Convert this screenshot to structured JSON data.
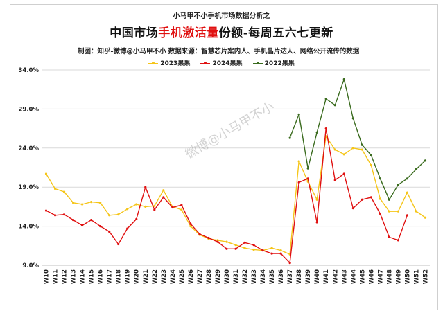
{
  "header": {
    "top_title": "小马甲不小手机市场数据分析之",
    "main_title_prefix": "中国市场",
    "main_title_highlight": "手机激活量",
    "main_title_suffix": "份额-每周五六七更新",
    "subtitle": "制图：知乎-微博@小马甲不小    数据来源：智慧芯片案内人、手机晶片达人、网络公开流传的数据"
  },
  "watermark": "微博@小马甲不小",
  "colors": {
    "y2023": "#f5c518",
    "y2024": "#e01010",
    "y2022": "#3a6b1e"
  },
  "chart_data": {
    "type": "line",
    "title": "",
    "xlabel": "",
    "ylabel": "",
    "ylim": [
      9.0,
      34.0
    ],
    "yticks": [
      "9.0%",
      "14.0%",
      "19.0%",
      "24.0%",
      "29.0%",
      "34.0%"
    ],
    "ytick_values": [
      9,
      14,
      19,
      24,
      29,
      34
    ],
    "grid": "horizontal",
    "legend_position": "top",
    "categories": [
      "W10",
      "W11",
      "W12",
      "W13",
      "W14",
      "W15",
      "W16",
      "W17",
      "W18",
      "W19",
      "W20",
      "W21",
      "W22",
      "W23",
      "W24",
      "W25",
      "W26",
      "W27",
      "W28",
      "W29",
      "W30",
      "W31",
      "W32",
      "W33",
      "W34",
      "W35",
      "W36",
      "W37",
      "W38",
      "W39",
      "W40",
      "W41",
      "W42",
      "W43",
      "W44",
      "W45",
      "W46",
      "W47",
      "W48",
      "W49",
      "W50",
      "W51",
      "W52"
    ],
    "series": [
      {
        "name": "2023果果",
        "color": "#f5c518",
        "values": [
          20.7,
          18.8,
          18.4,
          17.0,
          16.8,
          17.1,
          17.0,
          15.4,
          15.5,
          16.2,
          16.8,
          16.5,
          16.6,
          18.6,
          16.5,
          16.1,
          14.0,
          12.9,
          12.4,
          12.2,
          12.0,
          11.6,
          11.2,
          11.0,
          10.9,
          11.2,
          10.9,
          10.4,
          22.3,
          19.7,
          17.4,
          25.5,
          23.8,
          23.2,
          24.0,
          23.8,
          21.8,
          17.5,
          15.9,
          15.9,
          18.3,
          15.9,
          15.1
        ]
      },
      {
        "name": "2024果果",
        "color": "#e01010",
        "values": [
          16.0,
          15.4,
          15.5,
          14.8,
          14.1,
          14.8,
          14.0,
          13.3,
          11.7,
          13.7,
          14.9,
          19.0,
          16.1,
          17.7,
          16.4,
          16.7,
          14.3,
          13.0,
          12.5,
          12.0,
          11.1,
          11.1,
          11.9,
          11.6,
          10.9,
          10.5,
          10.5,
          9.3,
          19.6,
          20.1,
          14.5,
          26.5,
          19.9,
          20.7,
          16.3,
          17.4,
          17.7,
          15.6,
          12.6,
          12.2,
          15.4,
          null,
          null
        ]
      },
      {
        "name": "2022果果",
        "color": "#3a6b1e",
        "values": [
          null,
          null,
          null,
          null,
          null,
          null,
          null,
          null,
          null,
          null,
          null,
          null,
          null,
          null,
          null,
          null,
          null,
          null,
          null,
          null,
          null,
          null,
          null,
          null,
          null,
          null,
          null,
          25.3,
          28.3,
          21.4,
          26.0,
          30.3,
          29.5,
          32.8,
          27.8,
          24.4,
          23.1,
          20.1,
          17.4,
          19.3,
          20.1,
          21.3,
          22.4
        ]
      }
    ]
  }
}
